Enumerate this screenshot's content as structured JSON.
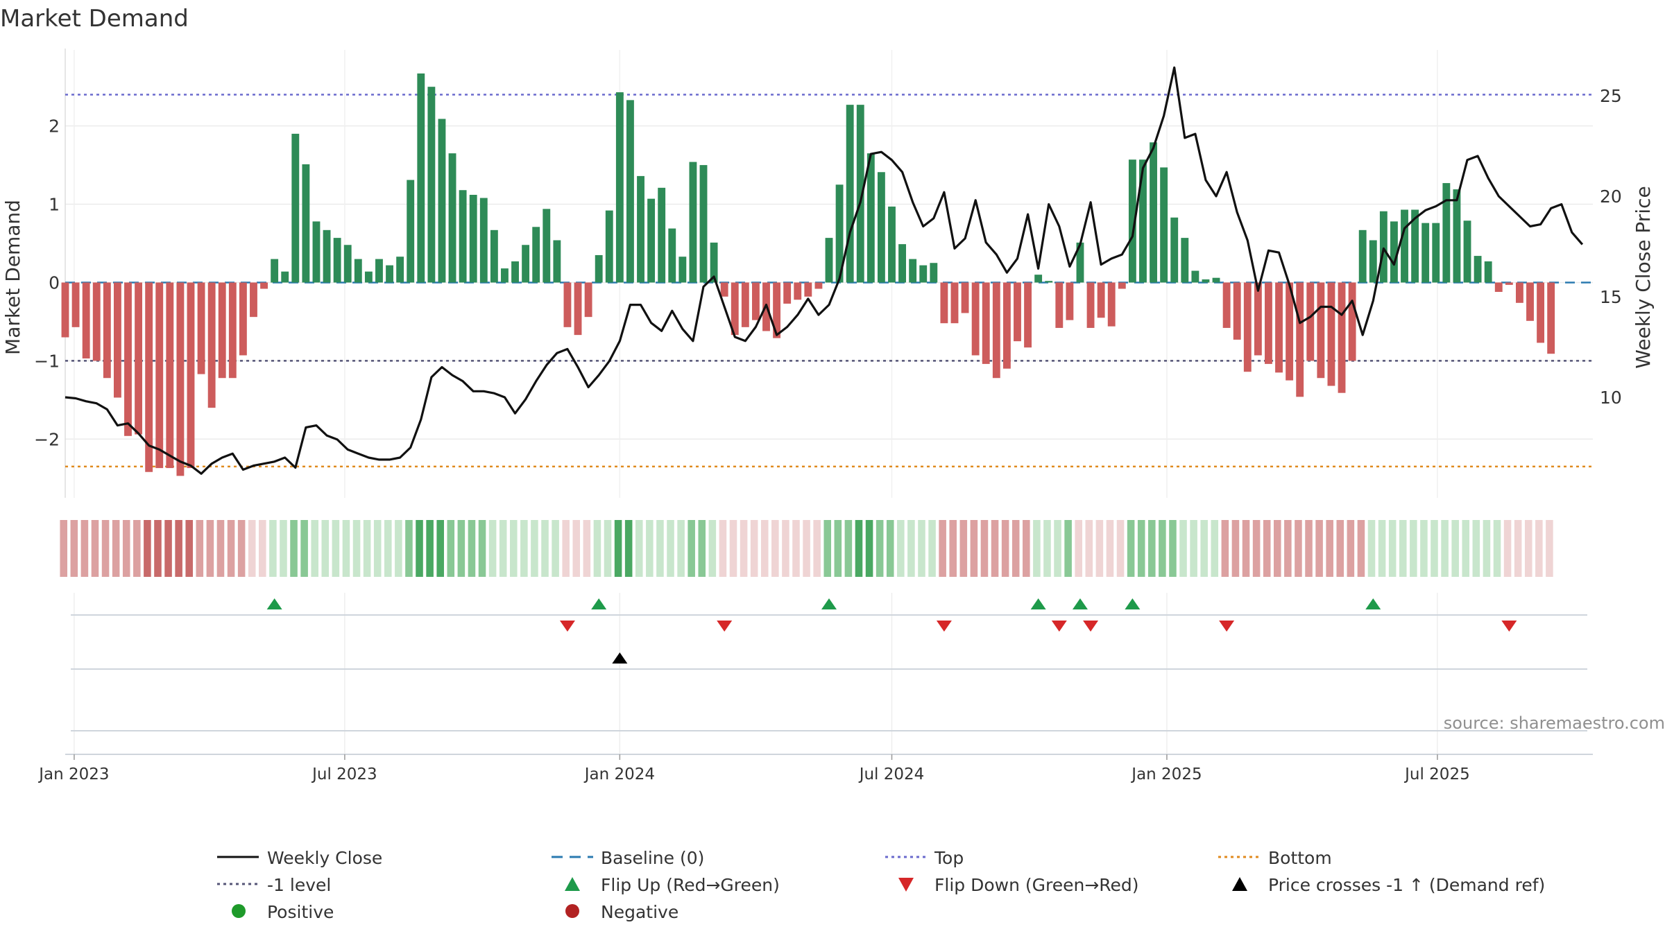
{
  "chart_data": {
    "type": "bar",
    "title": "Market Demand",
    "ylabel": "Market Demand",
    "y2label": "Weekly Close Price",
    "source": "source: sharemaestro.com",
    "ylim": [
      -2.75,
      2.9
    ],
    "y2lim": [
      5,
      27
    ],
    "yticks": [
      2,
      1,
      0,
      -1,
      -2
    ],
    "yticklabels": [
      "2",
      "1",
      "0",
      "−1",
      "−2"
    ],
    "y2ticks": [
      25,
      20,
      15,
      10
    ],
    "y2ticklabels": [
      "25",
      "20",
      "15",
      "10"
    ],
    "x_start": "2022-12-26",
    "x_end": "2025-10-13",
    "xticks": [
      {
        "date": "2023-01-01",
        "label": "Jan 2023"
      },
      {
        "date": "2023-07-01",
        "label": "Jul 2023"
      },
      {
        "date": "2024-01-01",
        "label": "Jan 2024"
      },
      {
        "date": "2024-07-01",
        "label": "Jul 2024"
      },
      {
        "date": "2025-01-01",
        "label": "Jan 2025"
      },
      {
        "date": "2025-07-01",
        "label": "Jul 2025"
      }
    ],
    "first_week": "2022-12-26",
    "week_step_days": 7,
    "reference_lines": {
      "top": 2.4,
      "bottom": -2.35,
      "minus_one": -1,
      "baseline": 0
    },
    "demand": [
      -0.7,
      -0.57,
      -0.97,
      -1.0,
      -1.22,
      -1.47,
      -1.96,
      -1.94,
      -2.42,
      -2.37,
      -2.37,
      -2.47,
      -2.37,
      -1.17,
      -1.6,
      -1.22,
      -1.22,
      -0.93,
      -0.44,
      -0.08,
      0.3,
      0.14,
      1.9,
      1.51,
      0.78,
      0.67,
      0.57,
      0.48,
      0.3,
      0.14,
      0.3,
      0.22,
      0.33,
      1.31,
      2.67,
      2.5,
      2.09,
      1.65,
      1.18,
      1.12,
      1.08,
      0.67,
      0.18,
      0.27,
      0.48,
      0.71,
      0.94,
      0.54,
      -0.57,
      -0.67,
      -0.44,
      0.35,
      0.92,
      2.43,
      2.33,
      1.36,
      1.07,
      1.21,
      0.69,
      0.33,
      1.54,
      1.5,
      0.51,
      -0.18,
      -0.67,
      -0.57,
      -0.48,
      -0.62,
      -0.71,
      -0.27,
      -0.22,
      -0.18,
      -0.08,
      0.57,
      1.25,
      2.27,
      2.27,
      1.65,
      1.41,
      0.97,
      0.49,
      0.3,
      0.22,
      0.25,
      -0.52,
      -0.52,
      -0.39,
      -0.93,
      -1.04,
      -1.22,
      -1.1,
      -0.75,
      -0.83,
      0.1,
      0.02,
      -0.58,
      -0.48,
      0.51,
      -0.58,
      -0.45,
      -0.56,
      -0.08,
      1.57,
      1.57,
      1.79,
      1.47,
      0.83,
      0.57,
      0.15,
      0.04,
      0.06,
      -0.58,
      -0.73,
      -1.14,
      -0.93,
      -1.04,
      -1.15,
      -1.25,
      -1.46,
      -1.0,
      -1.22,
      -1.32,
      -1.41,
      -1.0,
      0.67,
      0.54,
      0.91,
      0.78,
      0.93,
      0.93,
      0.76,
      0.76,
      1.27,
      1.19,
      0.79,
      0.34,
      0.27,
      -0.12,
      -0.03,
      -0.26,
      -0.49,
      -0.77,
      -0.91
    ],
    "close": [
      10.0,
      9.95,
      9.8,
      9.7,
      9.4,
      8.6,
      8.7,
      8.2,
      7.6,
      7.4,
      7.1,
      6.8,
      6.6,
      6.2,
      6.7,
      7.0,
      7.2,
      6.4,
      6.6,
      6.7,
      6.8,
      7.0,
      6.5,
      8.5,
      8.6,
      8.1,
      7.9,
      7.4,
      7.2,
      7.0,
      6.9,
      6.9,
      7.0,
      7.5,
      8.9,
      11.0,
      11.5,
      11.1,
      10.8,
      10.3,
      10.3,
      10.2,
      10.0,
      9.2,
      9.9,
      10.8,
      11.6,
      12.2,
      12.4,
      11.5,
      10.5,
      11.1,
      11.8,
      12.8,
      14.6,
      14.6,
      13.7,
      13.3,
      14.3,
      13.4,
      12.8,
      15.5,
      16.0,
      14.5,
      13.0,
      12.8,
      13.5,
      14.6,
      13.1,
      13.5,
      14.1,
      14.9,
      14.1,
      14.6,
      15.9,
      18.2,
      19.7,
      22.1,
      22.2,
      21.8,
      21.2,
      19.7,
      18.5,
      18.9,
      20.2,
      17.4,
      17.9,
      19.8,
      17.7,
      17.1,
      16.2,
      16.9,
      19.1,
      16.4,
      19.6,
      18.5,
      16.5,
      17.6,
      19.7,
      16.6,
      16.9,
      17.1,
      18.0,
      21.4,
      22.4,
      24.0,
      26.4,
      22.9,
      23.1,
      20.8,
      20.0,
      21.2,
      19.2,
      17.8,
      15.3,
      17.3,
      17.2,
      15.6,
      13.7,
      14.0,
      14.5,
      14.5,
      14.1,
      14.8,
      13.1,
      14.8,
      17.4,
      16.6,
      18.4,
      18.9,
      19.3,
      19.5,
      19.8,
      19.8,
      21.8,
      22.0,
      20.9,
      20.0,
      19.5,
      19.0,
      18.5,
      18.6,
      19.4,
      19.6,
      18.2,
      17.6
    ],
    "heat_bands": [
      {
        "start": 0,
        "end": 7,
        "tone": "neg-mid"
      },
      {
        "start": 8,
        "end": 12,
        "tone": "neg-strong"
      },
      {
        "start": 13,
        "end": 17,
        "tone": "neg-mid"
      },
      {
        "start": 18,
        "end": 19,
        "tone": "neg-light"
      },
      {
        "start": 20,
        "end": 21,
        "tone": "pos-light"
      },
      {
        "start": 22,
        "end": 23,
        "tone": "pos-mid"
      },
      {
        "start": 24,
        "end": 32,
        "tone": "pos-light"
      },
      {
        "start": 33,
        "end": 33,
        "tone": "pos-mid"
      },
      {
        "start": 34,
        "end": 36,
        "tone": "pos-strong"
      },
      {
        "start": 37,
        "end": 40,
        "tone": "pos-mid"
      },
      {
        "start": 41,
        "end": 47,
        "tone": "pos-light"
      },
      {
        "start": 48,
        "end": 50,
        "tone": "neg-light"
      },
      {
        "start": 51,
        "end": 52,
        "tone": "pos-light"
      },
      {
        "start": 53,
        "end": 54,
        "tone": "pos-strong"
      },
      {
        "start": 55,
        "end": 59,
        "tone": "pos-light"
      },
      {
        "start": 60,
        "end": 61,
        "tone": "pos-mid"
      },
      {
        "start": 62,
        "end": 62,
        "tone": "pos-light"
      },
      {
        "start": 63,
        "end": 72,
        "tone": "neg-light"
      },
      {
        "start": 73,
        "end": 75,
        "tone": "pos-mid"
      },
      {
        "start": 76,
        "end": 77,
        "tone": "pos-strong"
      },
      {
        "start": 78,
        "end": 79,
        "tone": "pos-mid"
      },
      {
        "start": 80,
        "end": 83,
        "tone": "pos-light"
      },
      {
        "start": 84,
        "end": 92,
        "tone": "neg-mid"
      },
      {
        "start": 93,
        "end": 95,
        "tone": "pos-light"
      },
      {
        "start": 96,
        "end": 96,
        "tone": "pos-mid"
      },
      {
        "start": 97,
        "end": 101,
        "tone": "neg-light"
      },
      {
        "start": 102,
        "end": 106,
        "tone": "pos-mid"
      },
      {
        "start": 107,
        "end": 110,
        "tone": "pos-light"
      },
      {
        "start": 111,
        "end": 124,
        "tone": "neg-mid"
      },
      {
        "start": 125,
        "end": 137,
        "tone": "pos-light"
      },
      {
        "start": 138,
        "end": 144,
        "tone": "neg-light"
      }
    ],
    "heat_colors": {
      "neg-light": "#efd4d4",
      "neg-mid": "#dca1a1",
      "neg-strong": "#c86a6a",
      "pos-light": "#c8e6cc",
      "pos-mid": "#89c895",
      "pos-strong": "#4aa862"
    },
    "flip_up": [
      20,
      51,
      73,
      93,
      97,
      102,
      125
    ],
    "flip_down": [
      48,
      63,
      84,
      95,
      98,
      111,
      138
    ],
    "price_cross": [
      53
    ],
    "legend": {
      "weekly_close": "Weekly Close",
      "baseline": "Baseline (0)",
      "top": "Top",
      "bottom": "Bottom",
      "minus_one": "-1 level",
      "flip_up": "Flip Up (Red→Green)",
      "flip_down": "Flip Down (Green→Red)",
      "price_cross": "Price crosses -1 ↑ (Demand ref)",
      "positive": "Positive",
      "negative": "Negative"
    },
    "colors": {
      "positive": "#2e8b57",
      "negative": "#cd5c5c",
      "close": "#111111",
      "baseline": "#2a7ab0",
      "top": "#6a6acd",
      "bottom": "#e08a1e",
      "minus_one": "#555577",
      "flip_up": "#1e9a4a",
      "flip_down": "#d62728",
      "price_cross": "#000000",
      "positive_dot": "#1e9a2a",
      "negative_dot": "#b22222"
    }
  }
}
